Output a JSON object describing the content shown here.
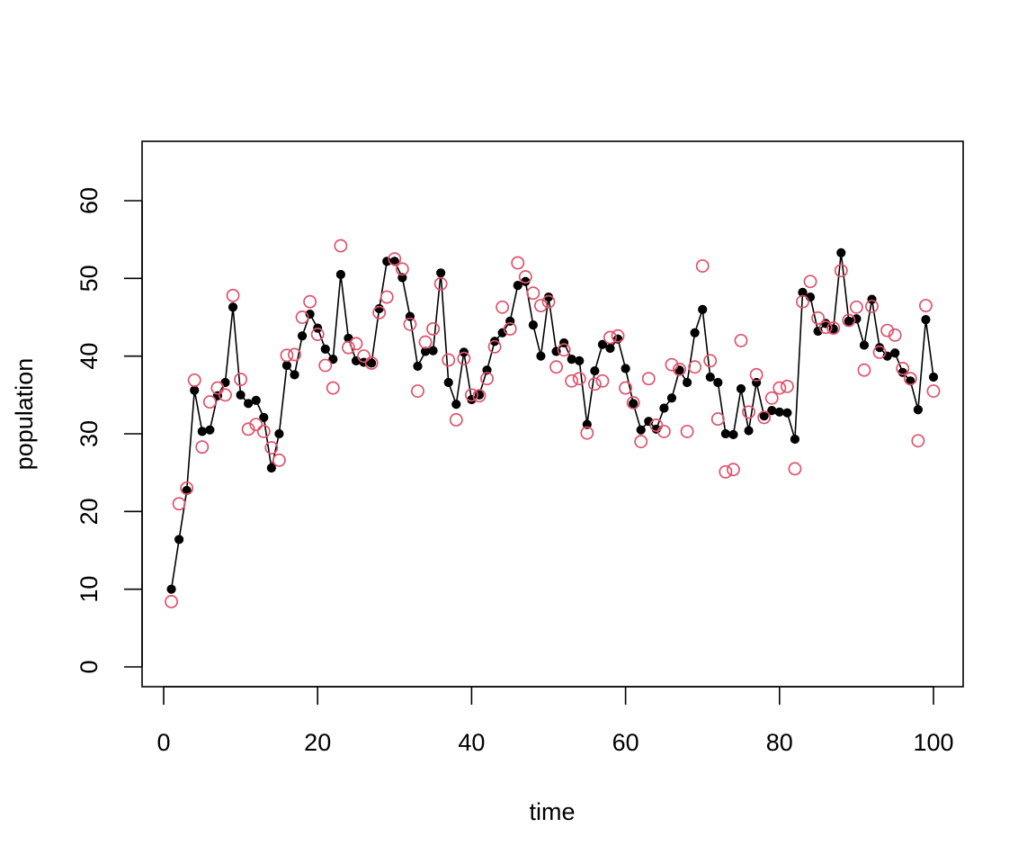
{
  "chart_data": {
    "type": "scatter",
    "xlabel": "time",
    "ylabel": "population",
    "xlim": [
      0,
      100
    ],
    "ylim": [
      0,
      60
    ],
    "x_ticks": [
      0,
      20,
      40,
      60,
      80,
      100
    ],
    "y_ticks": [
      0,
      10,
      20,
      30,
      40,
      50,
      60
    ],
    "x_tick_labels": [
      "0",
      "20",
      "40",
      "60",
      "80",
      "100"
    ],
    "y_tick_labels": [
      "0",
      "10",
      "20",
      "30",
      "40",
      "50",
      "60"
    ],
    "grid": false,
    "series": [
      {
        "style": "line-with-filled-points",
        "color": "#000000",
        "x": [
          1,
          2,
          3,
          4,
          5,
          6,
          7,
          8,
          9,
          10,
          11,
          12,
          13,
          14,
          15,
          16,
          17,
          18,
          19,
          20,
          21,
          22,
          23,
          24,
          25,
          26,
          27,
          28,
          29,
          30,
          31,
          32,
          33,
          34,
          35,
          36,
          37,
          38,
          39,
          40,
          41,
          42,
          43,
          44,
          45,
          46,
          47,
          48,
          49,
          50,
          51,
          52,
          53,
          54,
          55,
          56,
          57,
          58,
          59,
          60,
          61,
          62,
          63,
          64,
          65,
          66,
          67,
          68,
          69,
          70,
          71,
          72,
          73,
          74,
          75,
          76,
          77,
          78,
          79,
          80,
          81,
          82,
          83,
          84,
          85,
          86,
          87,
          88,
          89,
          90,
          91,
          92,
          93,
          94,
          95,
          96,
          97,
          98,
          99,
          100
        ],
        "y": [
          10.0,
          16.4,
          22.7,
          35.6,
          30.3,
          30.5,
          34.9,
          36.6,
          46.3,
          35.0,
          33.9,
          34.3,
          32.1,
          25.6,
          30.0,
          38.8,
          37.6,
          42.6,
          45.4,
          43.6,
          40.9,
          39.6,
          50.5,
          42.3,
          39.4,
          39.2,
          39.1,
          46.1,
          52.2,
          52.2,
          50.1,
          45.1,
          38.7,
          40.6,
          40.7,
          50.7,
          36.6,
          33.8,
          40.5,
          34.4,
          35.0,
          38.2,
          41.9,
          43.0,
          44.5,
          49.1,
          49.6,
          44.0,
          40.0,
          47.6,
          40.6,
          41.7,
          39.6,
          39.4,
          31.2,
          38.1,
          41.5,
          41.0,
          42.2,
          38.4,
          33.9,
          30.5,
          31.6,
          30.6,
          33.3,
          34.6,
          38.2,
          36.6,
          43.0,
          46.0,
          37.3,
          36.6,
          30.0,
          29.9,
          35.8,
          30.4,
          36.6,
          32.3,
          33.0,
          32.8,
          32.7,
          29.3,
          48.2,
          47.6,
          43.2,
          44.2,
          43.5,
          53.3,
          44.5,
          44.8,
          41.4,
          47.3,
          41.1,
          40.0,
          40.4,
          37.9,
          36.8,
          33.1,
          44.7,
          37.3
        ]
      },
      {
        "style": "open-points",
        "color": "#DF536B",
        "x": [
          1,
          2,
          3,
          4,
          5,
          6,
          7,
          8,
          9,
          10,
          11,
          12,
          13,
          14,
          15,
          16,
          17,
          18,
          19,
          20,
          21,
          22,
          23,
          24,
          25,
          26,
          27,
          28,
          29,
          30,
          31,
          32,
          33,
          34,
          35,
          36,
          37,
          38,
          39,
          40,
          41,
          42,
          43,
          44,
          45,
          46,
          47,
          48,
          49,
          50,
          51,
          52,
          53,
          54,
          55,
          56,
          57,
          58,
          59,
          60,
          61,
          62,
          63,
          64,
          65,
          66,
          67,
          68,
          69,
          70,
          71,
          72,
          73,
          74,
          75,
          76,
          77,
          78,
          79,
          80,
          81,
          82,
          83,
          84,
          85,
          86,
          87,
          88,
          89,
          90,
          91,
          92,
          93,
          94,
          95,
          96,
          97,
          98,
          99,
          100
        ],
        "y": [
          8.4,
          21.0,
          23.0,
          36.9,
          28.3,
          34.1,
          35.9,
          35.0,
          47.8,
          37.0,
          30.6,
          31.2,
          30.3,
          28.2,
          26.6,
          40.1,
          40.2,
          45.0,
          47.0,
          42.8,
          38.8,
          35.9,
          54.2,
          41.1,
          41.6,
          40.0,
          39.1,
          45.6,
          47.6,
          52.5,
          51.2,
          44.1,
          35.5,
          41.8,
          43.5,
          49.3,
          39.5,
          31.8,
          39.7,
          35.0,
          34.9,
          37.1,
          41.2,
          46.3,
          43.5,
          52.0,
          50.2,
          48.1,
          46.5,
          47.0,
          38.6,
          40.8,
          36.8,
          37.1,
          30.1,
          36.4,
          36.8,
          42.4,
          42.6,
          35.9,
          34.0,
          29.0,
          37.1,
          31.1,
          30.3,
          38.9,
          38.3,
          30.3,
          38.6,
          51.6,
          39.4,
          31.9,
          25.1,
          25.4,
          42.0,
          32.8,
          37.6,
          32.1,
          34.6,
          35.9,
          36.1,
          25.5,
          47.0,
          49.6,
          44.9,
          43.7,
          43.6,
          51.0,
          44.6,
          46.3,
          38.2,
          46.4,
          40.5,
          43.3,
          42.7,
          38.4,
          37.1,
          29.1,
          46.5,
          35.5
        ]
      }
    ]
  }
}
